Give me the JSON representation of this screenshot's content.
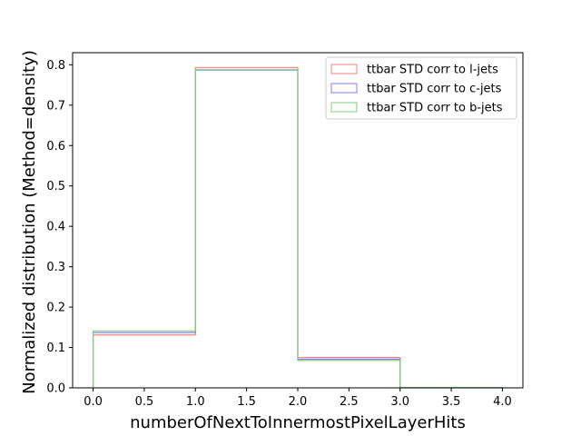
{
  "chart_data": {
    "type": "histogram-step",
    "xlabel": "numberOfNextToInnermostPixelLayerHits",
    "ylabel": "Normalized distribution (Method=density)",
    "xlim": [
      -0.2,
      4.2
    ],
    "ylim": [
      0,
      0.83
    ],
    "xticks": [
      0.0,
      0.5,
      1.0,
      1.5,
      2.0,
      2.5,
      3.0,
      3.5,
      4.0
    ],
    "xtick_labels": [
      "0.0",
      "0.5",
      "1.0",
      "1.5",
      "2.0",
      "2.5",
      "3.0",
      "3.5",
      "4.0"
    ],
    "yticks": [
      0.0,
      0.1,
      0.2,
      0.3,
      0.4,
      0.5,
      0.6,
      0.7,
      0.8
    ],
    "ytick_labels": [
      "0.0",
      "0.1",
      "0.2",
      "0.3",
      "0.4",
      "0.5",
      "0.6",
      "0.7",
      "0.8"
    ],
    "bin_edges": [
      0,
      1,
      2,
      3,
      4
    ],
    "grid": false,
    "legend_position": "top-right",
    "series": [
      {
        "name": "ttbar STD corr to l-jets",
        "color": "#ff7f7f",
        "values": [
          0.131,
          0.793,
          0.075,
          0.001
        ]
      },
      {
        "name": "ttbar STD corr to c-jets",
        "color": "#7f7fff",
        "values": [
          0.137,
          0.787,
          0.071,
          0.001
        ]
      },
      {
        "name": "ttbar STD corr to b-jets",
        "color": "#7fcf7f",
        "values": [
          0.141,
          0.788,
          0.068,
          0.001
        ]
      }
    ]
  }
}
